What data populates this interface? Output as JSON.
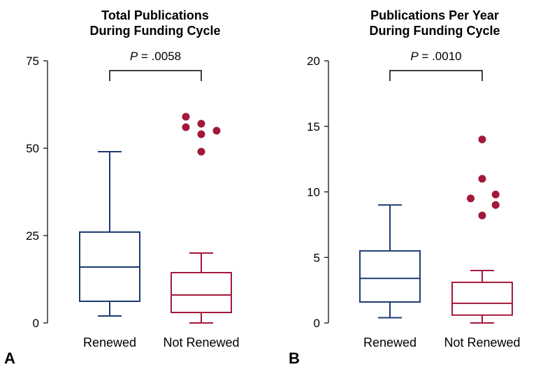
{
  "chart_data": [
    {
      "type": "boxplot",
      "panel_label": "A",
      "title_lines": [
        "Total Publications",
        "During Funding Cycle"
      ],
      "ylim": [
        0,
        75
      ],
      "yticks": [
        0,
        25,
        50,
        75
      ],
      "categories": [
        "Renewed",
        "Not Renewed"
      ],
      "significance": {
        "p_italic": "P",
        "p_rest": " = .0058",
        "between": [
          0,
          1
        ]
      },
      "boxes": [
        {
          "category": "Renewed",
          "color": "#1f3a73",
          "whisker_low": 2,
          "q1": 6.2,
          "median": 16,
          "q3": 26,
          "whisker_high": 49,
          "outliers": []
        },
        {
          "category": "Not Renewed",
          "color": "#a3183a",
          "whisker_low": 0,
          "q1": 3,
          "median": 8,
          "q3": 14.4,
          "whisker_high": 20,
          "outliers": [
            {
              "x_offset": -0.4,
              "y": 59
            },
            {
              "x_offset": -0.4,
              "y": 56
            },
            {
              "x_offset": 0.0,
              "y": 57
            },
            {
              "x_offset": 0.0,
              "y": 54
            },
            {
              "x_offset": 0.0,
              "y": 49
            },
            {
              "x_offset": 0.4,
              "y": 55
            }
          ]
        }
      ]
    },
    {
      "type": "boxplot",
      "panel_label": "B",
      "title_lines": [
        "Publications Per Year",
        "During Funding Cycle"
      ],
      "ylim": [
        0,
        20
      ],
      "yticks": [
        0,
        5,
        10,
        15,
        20
      ],
      "categories": [
        "Renewed",
        "Not Renewed"
      ],
      "significance": {
        "p_italic": "P",
        "p_rest": " = .0010",
        "between": [
          0,
          1
        ]
      },
      "boxes": [
        {
          "category": "Renewed",
          "color": "#1f3a73",
          "whisker_low": 0.4,
          "q1": 1.6,
          "median": 3.4,
          "q3": 5.5,
          "whisker_high": 9,
          "outliers": []
        },
        {
          "category": "Not Renewed",
          "color": "#a3183a",
          "whisker_low": 0,
          "q1": 0.6,
          "median": 1.5,
          "q3": 3.1,
          "whisker_high": 4,
          "outliers": [
            {
              "x_offset": 0.0,
              "y": 14
            },
            {
              "x_offset": 0.0,
              "y": 11
            },
            {
              "x_offset": 0.35,
              "y": 9.8
            },
            {
              "x_offset": -0.3,
              "y": 9.5
            },
            {
              "x_offset": 0.35,
              "y": 9
            },
            {
              "x_offset": 0.0,
              "y": 8.2
            }
          ]
        }
      ]
    }
  ]
}
